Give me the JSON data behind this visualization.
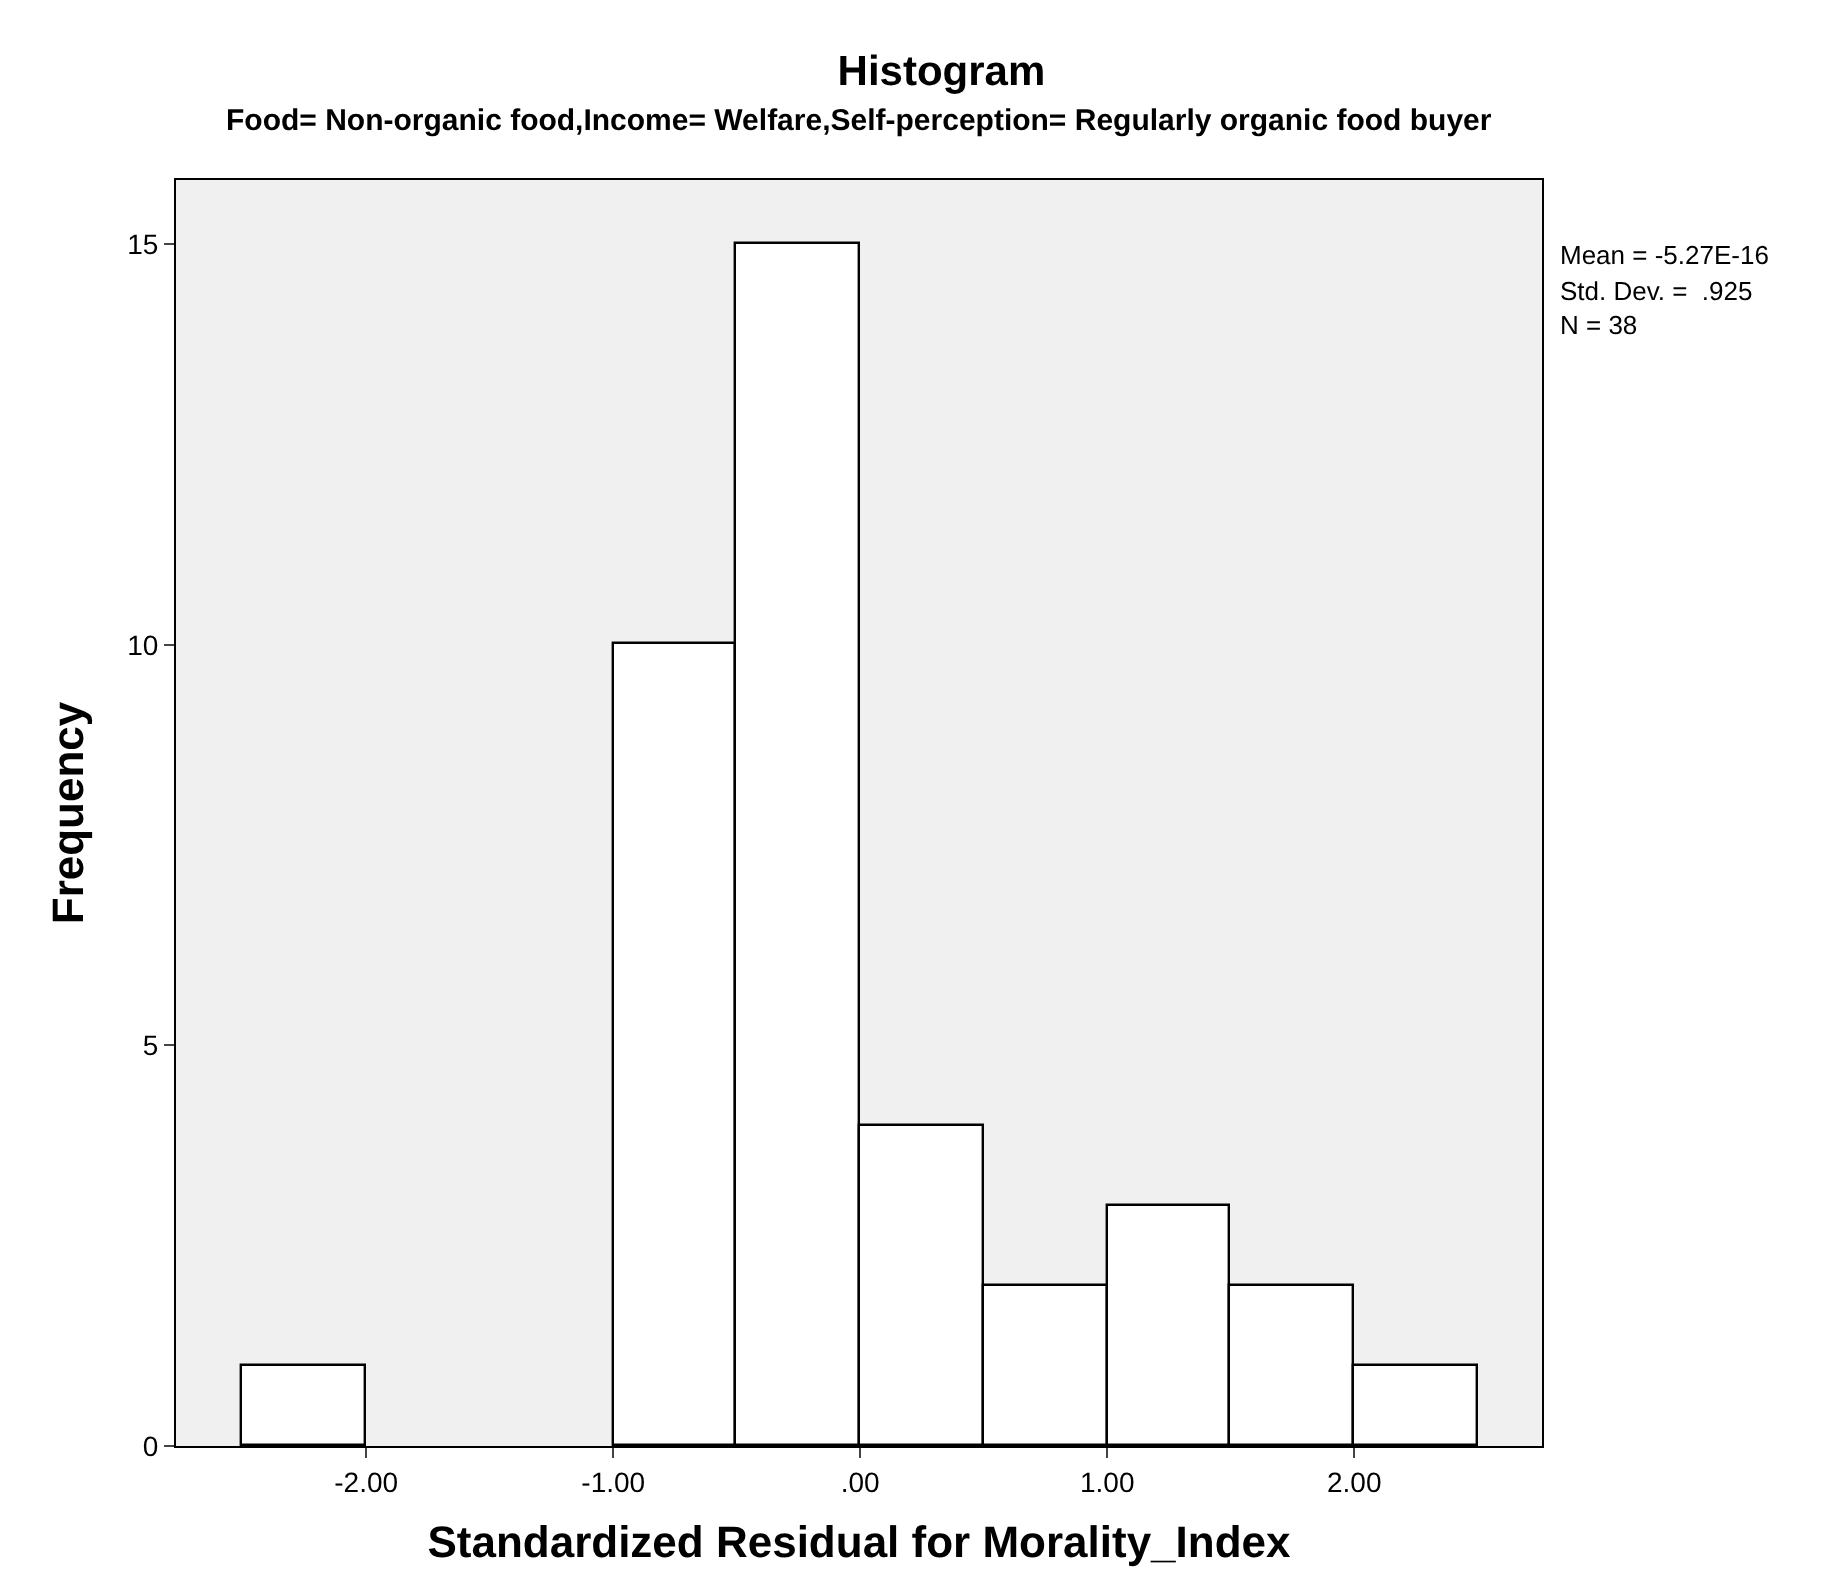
{
  "chart_data": {
    "type": "histogram",
    "title": "Histogram",
    "subtitle": "Food= Non-organic food,Income= Welfare,Self-perception= Regularly organic food buyer",
    "xlabel": "Standardized Residual for Morality_Index",
    "ylabel": "Frequency",
    "bins": [
      -2.5,
      -2.0,
      -1.5,
      -1.0,
      -0.5,
      0.0,
      0.5,
      1.0,
      1.5,
      2.0,
      2.5
    ],
    "values": [
      1,
      0,
      0,
      10,
      15,
      4,
      2,
      3,
      2,
      1
    ],
    "color": "#ffffff",
    "xlim": [
      -2.77,
      2.76
    ],
    "ylim": [
      0,
      15.8
    ],
    "xticks": [
      {
        "value": -2,
        "label": "-2.00"
      },
      {
        "value": -1,
        "label": "-1.00"
      },
      {
        "value": 0,
        "label": ".00"
      },
      {
        "value": 1,
        "label": "1.00"
      },
      {
        "value": 2,
        "label": "2.00"
      }
    ],
    "yticks": [
      0,
      5,
      10,
      15
    ],
    "grid": false,
    "annotations": [
      "Mean = -5.27E-16",
      "Std. Dev. =  .925",
      "N = 38"
    ]
  }
}
